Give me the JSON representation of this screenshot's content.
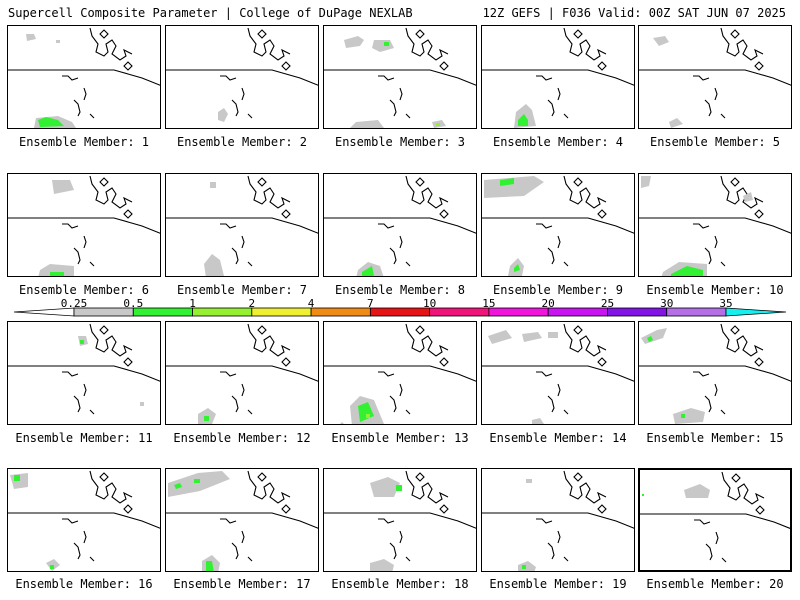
{
  "header": {
    "left": "Supercell Composite Parameter | College of DuPage NEXLAB",
    "right": "12Z GEFS | F036 Valid: 00Z SAT JUN 07 2025"
  },
  "legend": {
    "levels": [
      "0.25",
      "0.5",
      "1",
      "2",
      "4",
      "7",
      "10",
      "15",
      "20",
      "25",
      "30",
      "35"
    ],
    "colors": [
      "#c8c8c8",
      "#32f032",
      "#96f032",
      "#f0f032",
      "#f08c14",
      "#e61414",
      "#f0147a",
      "#f014dc",
      "#c814f0",
      "#8214e6",
      "#b46ee6",
      "#14f0f0"
    ]
  },
  "members": [
    {
      "label": "Ensemble Member: 1"
    },
    {
      "label": "Ensemble Member: 2"
    },
    {
      "label": "Ensemble Member: 3"
    },
    {
      "label": "Ensemble Member: 4"
    },
    {
      "label": "Ensemble Member: 5"
    },
    {
      "label": "Ensemble Member: 6"
    },
    {
      "label": "Ensemble Member: 7"
    },
    {
      "label": "Ensemble Member: 8"
    },
    {
      "label": "Ensemble Member: 9"
    },
    {
      "label": "Ensemble Member: 10"
    },
    {
      "label": "Ensemble Member: 11"
    },
    {
      "label": "Ensemble Member: 12"
    },
    {
      "label": "Ensemble Member: 13"
    },
    {
      "label": "Ensemble Member: 14"
    },
    {
      "label": "Ensemble Member: 15"
    },
    {
      "label": "Ensemble Member: 16"
    },
    {
      "label": "Ensemble Member: 17"
    },
    {
      "label": "Ensemble Member: 18"
    },
    {
      "label": "Ensemble Member: 19"
    },
    {
      "label": "Ensemble Member: 20"
    }
  ]
}
